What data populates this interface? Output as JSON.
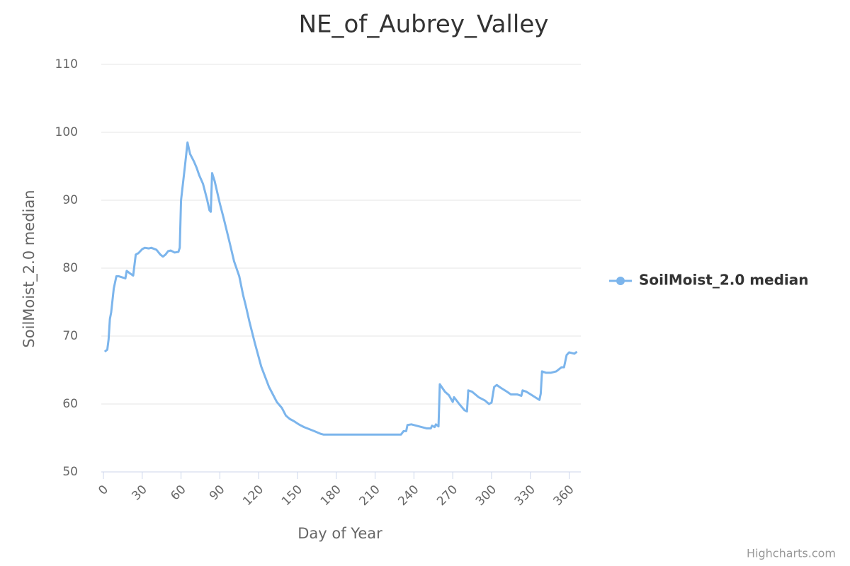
{
  "chart_data": {
    "type": "line",
    "title": "NE_of_Aubrey_Valley",
    "x_label": "Day of Year",
    "y_label": "SoilMoist_2.0 median",
    "credit": "Highcharts.com",
    "xlim": [
      0,
      369
    ],
    "ylim": [
      50,
      110
    ],
    "xticks": [
      0,
      30,
      60,
      90,
      120,
      150,
      180,
      210,
      240,
      270,
      300,
      330,
      360
    ],
    "yticks": [
      50,
      60,
      70,
      80,
      90,
      100,
      110
    ],
    "grid": true,
    "legend": "right",
    "x": [
      1,
      3,
      4,
      5,
      6,
      8,
      10,
      12,
      17,
      18,
      20,
      23,
      25,
      27,
      30,
      32,
      35,
      37,
      41,
      44,
      46,
      48,
      50,
      52,
      55,
      58,
      59,
      60,
      63,
      65,
      67,
      70,
      72,
      74,
      77,
      80,
      82,
      83,
      84,
      86,
      90,
      93,
      97,
      101,
      105,
      108,
      110,
      113,
      117,
      122,
      124,
      128,
      134,
      138,
      141,
      144,
      147,
      151,
      155,
      159,
      163,
      168,
      170,
      230,
      232,
      234,
      235,
      238,
      244,
      250,
      253,
      254,
      256,
      257,
      259,
      260,
      264,
      267,
      270,
      271,
      275,
      279,
      281,
      282,
      285,
      290,
      295,
      298,
      300,
      302,
      304,
      307,
      312,
      315,
      320,
      323,
      324,
      327,
      332,
      337,
      338,
      339,
      342,
      346,
      350,
      354,
      356,
      358,
      360,
      364,
      366
    ],
    "series": [
      {
        "name": "SoilMoist_2.0 median",
        "color": "#7cb5ec",
        "values": [
          67.7,
          68,
          69.5,
          72.5,
          73.5,
          77,
          78.8,
          78.8,
          78.5,
          79.6,
          79.3,
          78.9,
          82,
          82.2,
          82.8,
          83,
          82.9,
          83,
          82.7,
          82,
          81.7,
          82,
          82.5,
          82.6,
          82.3,
          82.4,
          83,
          90,
          95,
          98.5,
          96.8,
          95.7,
          94.8,
          93.7,
          92.4,
          90.2,
          88.5,
          88.3,
          94,
          92.8,
          89.5,
          87.3,
          84.2,
          81,
          78.8,
          76,
          74.5,
          72,
          69,
          65.5,
          64.5,
          62.5,
          60.3,
          59.4,
          58.3,
          57.8,
          57.5,
          57,
          56.6,
          56.3,
          56,
          55.6,
          55.5,
          55.5,
          56,
          56,
          56.9,
          57,
          56.7,
          56.4,
          56.4,
          56.8,
          56.6,
          57,
          56.7,
          62.9,
          61.8,
          61.3,
          60.3,
          61,
          60,
          59.1,
          58.9,
          62,
          61.8,
          61,
          60.5,
          60,
          60.2,
          62.5,
          62.8,
          62.4,
          61.8,
          61.4,
          61.4,
          61.2,
          62,
          61.8,
          61.2,
          60.6,
          61.5,
          64.8,
          64.6,
          64.6,
          64.8,
          65.4,
          65.4,
          67.2,
          67.6,
          67.4,
          67.7
        ]
      }
    ]
  }
}
